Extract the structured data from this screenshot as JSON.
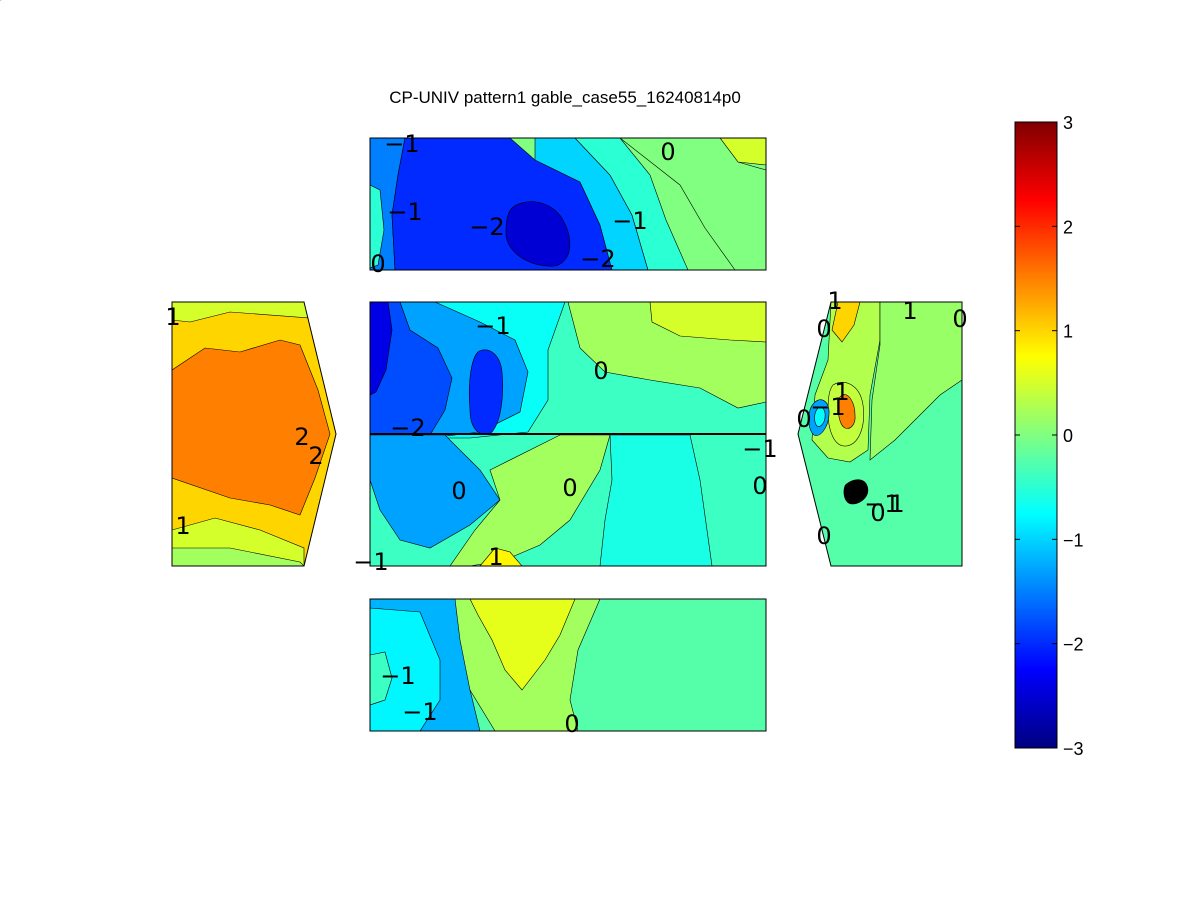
{
  "title": "CP-UNIV pattern1 gable_case55_16240814p0",
  "chart_data": {
    "type": "contour",
    "title": "CP-UNIV pattern1 gable_case55_16240814p0",
    "colormap": "jet",
    "clim": [
      -3,
      3
    ],
    "colorbar": {
      "ticks": [
        -3,
        -2,
        -1,
        0,
        1,
        2,
        3
      ],
      "tick_labels": [
        "−3",
        "−2",
        "−1",
        "0",
        "1",
        "2",
        "3"
      ],
      "placement": "right"
    },
    "contour_levels": [
      -3,
      -2.5,
      -2,
      -1.5,
      -1,
      -0.75,
      -0.5,
      -0.25,
      0,
      0.25,
      0.5,
      0.75,
      1,
      1.25,
      1.5,
      2,
      2.5,
      3
    ],
    "panels": [
      {
        "name": "top",
        "background_value": 0,
        "regions": [
          {
            "value": -1.5
          },
          {
            "value": -2
          },
          {
            "value": -2.5
          },
          {
            "value": -1
          },
          {
            "value": -0.5
          },
          {
            "value": 0.5
          },
          {
            "value": -0.5
          },
          {
            "value": 0
          }
        ],
        "labels": [
          "−1",
          "0",
          "−1",
          "−2",
          "−1",
          "−2",
          "0"
        ]
      },
      {
        "name": "left",
        "background_value": 1,
        "regions": [
          {
            "value": 0.5
          },
          {
            "value": 1.5
          },
          {
            "value": 0.5
          },
          {
            "value": 0.2
          }
        ],
        "labels": [
          "1",
          "2",
          "2",
          "1"
        ]
      },
      {
        "name": "center",
        "background_value": -0.4,
        "regions": [
          {
            "value": 0.2
          },
          {
            "value": 0.5
          },
          {
            "value": -0.7
          },
          {
            "value": -1.3
          },
          {
            "value": -1.8
          },
          {
            "value": -2.4
          },
          {
            "value": -2
          },
          {
            "value": -1.3
          },
          {
            "value": 0.2
          },
          {
            "value": -0.6
          },
          {
            "value": 0.8
          }
        ],
        "labels": [
          "−1",
          "0",
          "−2",
          "0",
          "−1",
          "0",
          "0",
          "−1",
          "1"
        ]
      },
      {
        "name": "right",
        "background_value": -0.25,
        "regions": [
          {
            "value": 0.3
          },
          {
            "value": 1
          },
          {
            "value": 0.6
          },
          {
            "value": 0.4
          },
          {
            "value": 1.5
          },
          {
            "value": -1.3
          },
          {
            "value": -0.7
          },
          {
            "value": 0.15
          }
        ],
        "labels": [
          "1",
          "1",
          "0",
          "0",
          "0",
          "1",
          "−1",
          "1",
          "0",
          "0",
          "−1"
        ]
      },
      {
        "name": "bottom",
        "background_value": -0.25,
        "regions": [
          {
            "value": 0.2
          },
          {
            "value": 0.6
          },
          {
            "value": -1.2
          },
          {
            "value": -0.8
          },
          {
            "value": -0.4
          }
        ],
        "labels": [
          "−1",
          "−1",
          "0"
        ]
      }
    ]
  }
}
